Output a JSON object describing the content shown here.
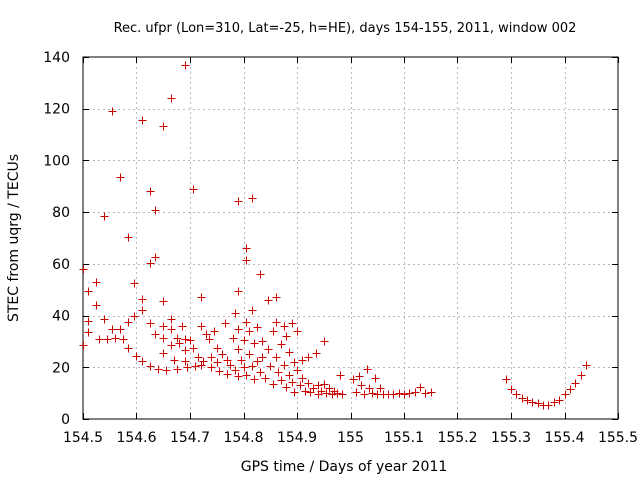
{
  "chart_data": {
    "type": "scatter",
    "title": "Rec. ufpr (Lon=310, Lat=-25, h=HE), days 154-155, 2011, window 002",
    "xlabel": "GPS time / Days of year 2011",
    "ylabel": "STEC from uqrg / TECUs",
    "xlim": [
      154.5,
      155.5
    ],
    "ylim": [
      0,
      140
    ],
    "grid": true,
    "marker": "+",
    "color": "#cc0000",
    "x_ticks": [
      154.5,
      154.6,
      154.7,
      154.8,
      154.9,
      155.0,
      155.1,
      155.2,
      155.3,
      155.4,
      155.5
    ],
    "x_tick_labels": [
      "154.5",
      "154.6",
      "154.7",
      "154.8",
      "154.9",
      "155",
      "155.1",
      "155.2",
      "155.3",
      "155.4",
      "155.5"
    ],
    "y_ticks": [
      0,
      20,
      40,
      60,
      80,
      100,
      120,
      140
    ],
    "y_tick_labels": [
      "0",
      "20",
      "40",
      "60",
      "80",
      "100",
      "120",
      "140"
    ],
    "points": [
      [
        154.5,
        58
      ],
      [
        154.5,
        28.5
      ],
      [
        154.51,
        49.5
      ],
      [
        154.51,
        38
      ],
      [
        154.51,
        33.5
      ],
      [
        154.525,
        53
      ],
      [
        154.525,
        44
      ],
      [
        154.53,
        31
      ],
      [
        154.54,
        78.5
      ],
      [
        154.54,
        38.5
      ],
      [
        154.545,
        31
      ],
      [
        154.555,
        119
      ],
      [
        154.555,
        35
      ],
      [
        154.56,
        31.5
      ],
      [
        154.57,
        93.5
      ],
      [
        154.57,
        35
      ],
      [
        154.575,
        31
      ],
      [
        154.585,
        70.5
      ],
      [
        154.585,
        37.5
      ],
      [
        154.585,
        27.5
      ],
      [
        154.595,
        52.5
      ],
      [
        154.595,
        40
      ],
      [
        154.6,
        24.5
      ],
      [
        154.61,
        115.5
      ],
      [
        154.61,
        46.5
      ],
      [
        154.61,
        42
      ],
      [
        154.61,
        22.5
      ],
      [
        154.625,
        88
      ],
      [
        154.625,
        60.5
      ],
      [
        154.625,
        37
      ],
      [
        154.625,
        20.5
      ],
      [
        154.635,
        81
      ],
      [
        154.635,
        62.5
      ],
      [
        154.635,
        33
      ],
      [
        154.64,
        19.5
      ],
      [
        154.65,
        113.5
      ],
      [
        154.65,
        45.5
      ],
      [
        154.65,
        36
      ],
      [
        154.65,
        31.5
      ],
      [
        154.65,
        25.5
      ],
      [
        154.655,
        19
      ],
      [
        154.665,
        124
      ],
      [
        154.665,
        38.5
      ],
      [
        154.665,
        35
      ],
      [
        154.665,
        28.5
      ],
      [
        154.67,
        23
      ],
      [
        154.675,
        31.5
      ],
      [
        154.675,
        19.5
      ],
      [
        154.68,
        29.5
      ],
      [
        154.685,
        36
      ],
      [
        154.69,
        137
      ],
      [
        154.69,
        31
      ],
      [
        154.69,
        26.5
      ],
      [
        154.69,
        22.5
      ],
      [
        154.695,
        20
      ],
      [
        154.7,
        30.5
      ],
      [
        154.705,
        89
      ],
      [
        154.705,
        27.5
      ],
      [
        154.71,
        20.5
      ],
      [
        154.715,
        24
      ],
      [
        154.72,
        47
      ],
      [
        154.72,
        36
      ],
      [
        154.72,
        21
      ],
      [
        154.725,
        22.5
      ],
      [
        154.73,
        33
      ],
      [
        154.735,
        31
      ],
      [
        154.74,
        24
      ],
      [
        154.74,
        20
      ],
      [
        154.745,
        34
      ],
      [
        154.75,
        27.5
      ],
      [
        154.75,
        22
      ],
      [
        154.755,
        18.5
      ],
      [
        154.76,
        25
      ],
      [
        154.765,
        37
      ],
      [
        154.77,
        23
      ],
      [
        154.77,
        17.5
      ],
      [
        154.775,
        21
      ],
      [
        154.78,
        31.5
      ],
      [
        154.785,
        41
      ],
      [
        154.785,
        19
      ],
      [
        154.79,
        84.5
      ],
      [
        154.79,
        49.5
      ],
      [
        154.79,
        35
      ],
      [
        154.79,
        27
      ],
      [
        154.79,
        16.5
      ],
      [
        154.795,
        23
      ],
      [
        154.8,
        30.5
      ],
      [
        154.8,
        20
      ],
      [
        154.805,
        66
      ],
      [
        154.805,
        61.5
      ],
      [
        154.805,
        37.5
      ],
      [
        154.805,
        17
      ],
      [
        154.81,
        34
      ],
      [
        154.81,
        25
      ],
      [
        154.815,
        85.5
      ],
      [
        154.815,
        42
      ],
      [
        154.815,
        20.5
      ],
      [
        154.82,
        29.5
      ],
      [
        154.82,
        15.5
      ],
      [
        154.825,
        35.5
      ],
      [
        154.825,
        22.5
      ],
      [
        154.83,
        56
      ],
      [
        154.83,
        18
      ],
      [
        154.835,
        30
      ],
      [
        154.835,
        24
      ],
      [
        154.84,
        16
      ],
      [
        154.845,
        46
      ],
      [
        154.845,
        27
      ],
      [
        154.85,
        20.5
      ],
      [
        154.855,
        34
      ],
      [
        154.855,
        13.5
      ],
      [
        154.86,
        47
      ],
      [
        154.86,
        37.5
      ],
      [
        154.86,
        24
      ],
      [
        154.865,
        18
      ],
      [
        154.87,
        29
      ],
      [
        154.87,
        15
      ],
      [
        154.875,
        36
      ],
      [
        154.875,
        21
      ],
      [
        154.88,
        32
      ],
      [
        154.88,
        12.5
      ],
      [
        154.885,
        26
      ],
      [
        154.885,
        17
      ],
      [
        154.89,
        37
      ],
      [
        154.89,
        14.5
      ],
      [
        154.895,
        22
      ],
      [
        154.895,
        10.5
      ],
      [
        154.9,
        34
      ],
      [
        154.9,
        19
      ],
      [
        154.905,
        13
      ],
      [
        154.91,
        23
      ],
      [
        154.91,
        16
      ],
      [
        154.915,
        11
      ],
      [
        154.92,
        24
      ],
      [
        154.92,
        14
      ],
      [
        154.925,
        10.5
      ],
      [
        154.93,
        12
      ],
      [
        154.935,
        25.5
      ],
      [
        154.94,
        13
      ],
      [
        154.94,
        9.5
      ],
      [
        154.945,
        11
      ],
      [
        154.95,
        30
      ],
      [
        154.95,
        13.5
      ],
      [
        154.955,
        10
      ],
      [
        154.96,
        12
      ],
      [
        154.965,
        9.5
      ],
      [
        154.97,
        11
      ],
      [
        154.975,
        10
      ],
      [
        154.98,
        17
      ],
      [
        154.985,
        9.5
      ],
      [
        155.005,
        15.5
      ],
      [
        155.01,
        10.5
      ],
      [
        155.015,
        16.5
      ],
      [
        155.02,
        13
      ],
      [
        155.025,
        9.5
      ],
      [
        155.03,
        19.5
      ],
      [
        155.035,
        12
      ],
      [
        155.04,
        10
      ],
      [
        155.045,
        16
      ],
      [
        155.05,
        9.5
      ],
      [
        155.055,
        12
      ],
      [
        155.06,
        9.5
      ],
      [
        155.07,
        9.5
      ],
      [
        155.08,
        9.5
      ],
      [
        155.09,
        10
      ],
      [
        155.1,
        9.5
      ],
      [
        155.11,
        10
      ],
      [
        155.12,
        10.5
      ],
      [
        155.13,
        12.5
      ],
      [
        155.14,
        10
      ],
      [
        155.15,
        10.5
      ],
      [
        155.29,
        15.5
      ],
      [
        155.3,
        11.5
      ],
      [
        155.31,
        9.5
      ],
      [
        155.32,
        8
      ],
      [
        155.33,
        7.5
      ],
      [
        155.34,
        6.5
      ],
      [
        155.35,
        6
      ],
      [
        155.36,
        5.5
      ],
      [
        155.37,
        5.5
      ],
      [
        155.38,
        6.5
      ],
      [
        155.39,
        7.5
      ],
      [
        155.4,
        9.5
      ],
      [
        155.41,
        11.5
      ],
      [
        155.42,
        14
      ],
      [
        155.43,
        17
      ],
      [
        155.44,
        21
      ]
    ]
  }
}
